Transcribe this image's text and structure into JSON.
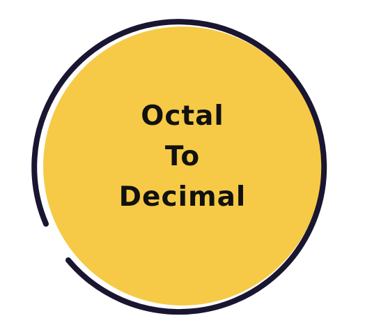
{
  "badge": {
    "lines": [
      "Octal",
      "To",
      "Decimal"
    ],
    "fill_color": "#F6CA46",
    "ring_color": "#1A1530",
    "text_color": "#111111"
  }
}
